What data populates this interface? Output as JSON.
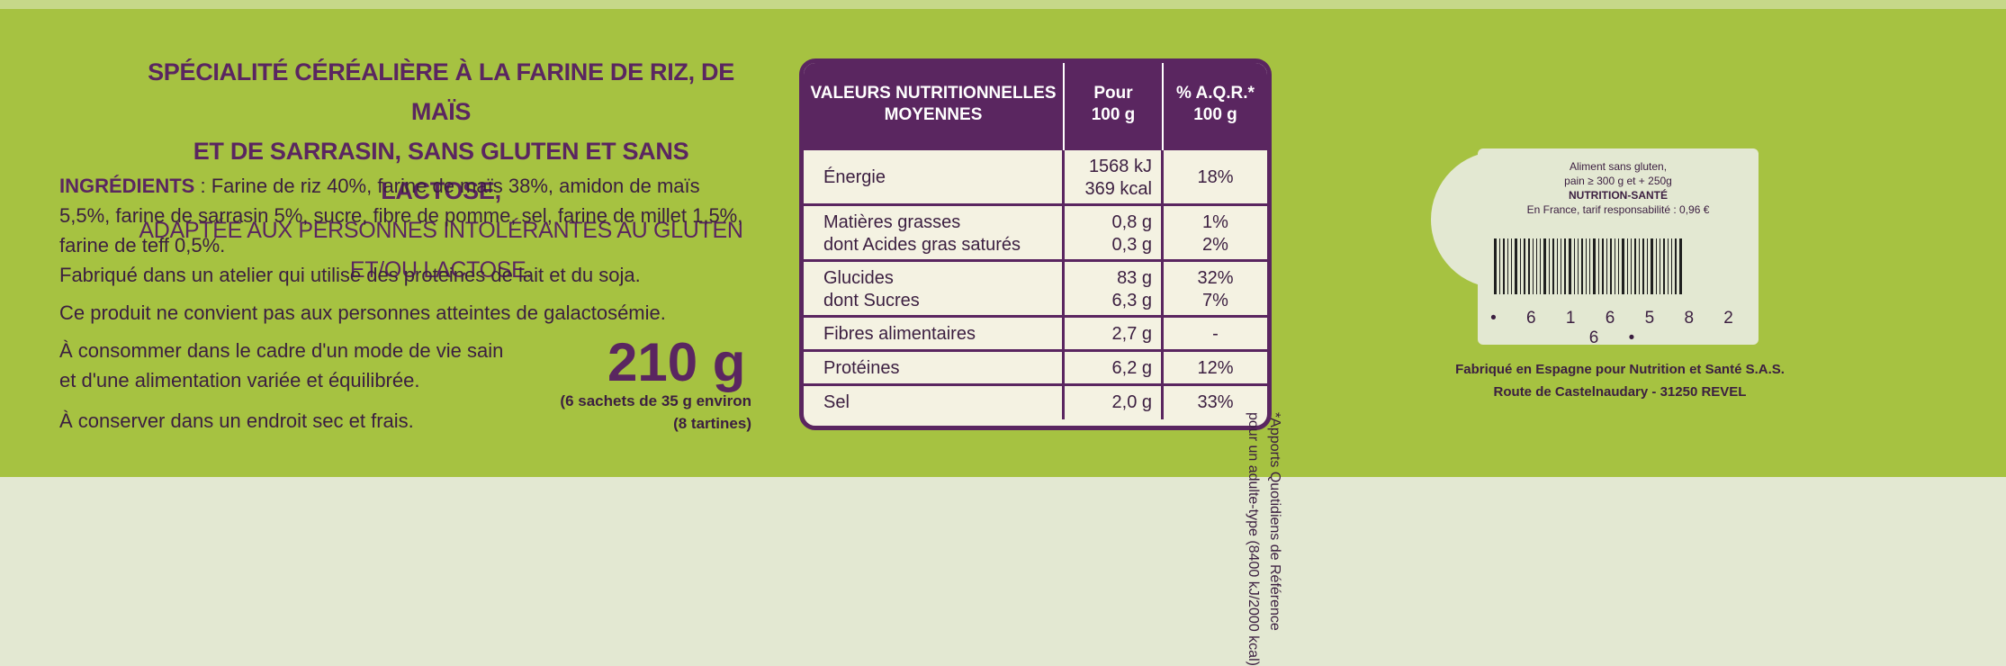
{
  "colors": {
    "background": "#a6c241",
    "purple": "#5a2660",
    "text": "#3b1e40",
    "label": "#e3e8d2"
  },
  "headline": {
    "line1": "SPÉCIALITÉ CÉRÉALIÈRE À LA FARINE DE RIZ, DE MAÏS",
    "line2": "ET DE SARRASIN, SANS GLUTEN ET SANS LACTOSE,",
    "line3": "ADAPTÉE AUX PERSONNES INTOLÉRANTES AU GLUTEN ET/OU LACTOSE."
  },
  "ingredients": {
    "label": "INGRÉDIENTS",
    "text": " : Farine de riz 40%, farine de maïs 38%, amidon de maïs 5,5%, farine de sarrasin 5%, sucre, fibre de pomme, sel, farine de millet 1,5%, farine de teff 0,5%.",
    "factory": "Fabriqué dans un atelier qui utilise des proteines de lait et du soja."
  },
  "warning": "Ce produit ne convient pas aux personnes atteintes de galactosémie.",
  "consume": {
    "line1": "À consommer dans le cadre d'un mode de vie sain",
    "line2": "et d'une alimentation variée et équilibrée."
  },
  "storage": "À conserver dans un endroit sec et frais.",
  "weight": {
    "value": "210 g",
    "note1": "(6 sachets de 35 g environ",
    "note2": "(8 tartines)"
  },
  "nutrition": {
    "header": {
      "col1a": "VALEURS NUTRITIONNELLES",
      "col1b": "MOYENNES",
      "col2a": "Pour",
      "col2b": "100 g",
      "col3a": "% A.Q.R.*",
      "col3b": "100 g"
    },
    "energy": {
      "label": "Énergie",
      "kj": "1568 kJ",
      "kcal": "369 kcal",
      "pct": "18%"
    },
    "fat": {
      "label": "Matières grasses",
      "value": "0,8 g",
      "pct": "1%"
    },
    "saturated": {
      "label": "dont Acides gras saturés",
      "value": "0,3 g",
      "pct": "2%"
    },
    "carbs": {
      "label": "Glucides",
      "value": "83 g",
      "pct": "32%"
    },
    "sugars": {
      "label": "dont Sucres",
      "value": "6,3 g",
      "pct": "7%"
    },
    "fibre": {
      "label": "Fibres alimentaires",
      "value": "2,7 g",
      "pct": "-"
    },
    "protein": {
      "label": "Protéines",
      "value": "6,2 g",
      "pct": "12%"
    },
    "salt": {
      "label": "Sel",
      "value": "2,0 g",
      "pct": "33%"
    }
  },
  "footnote": {
    "line1": "*Apports Quotidiens de Référence",
    "line2": "pour un adulte-type (8400 kJ/2000 kcal)"
  },
  "label": {
    "line1": "Aliment sans gluten,",
    "line2": "pain ≥ 300 g et + 250g",
    "line3": "NUTRITION-SANTÉ",
    "line4": "En France, tarif responsabilité : 0,96 €",
    "code": "• 6 1 6 5 8 2 6 •"
  },
  "maker": {
    "line1": "Fabriqué en Espagne pour Nutrition et Santé S.A.S.",
    "line2": "Route de Castelnaudary - 31250 REVEL"
  }
}
